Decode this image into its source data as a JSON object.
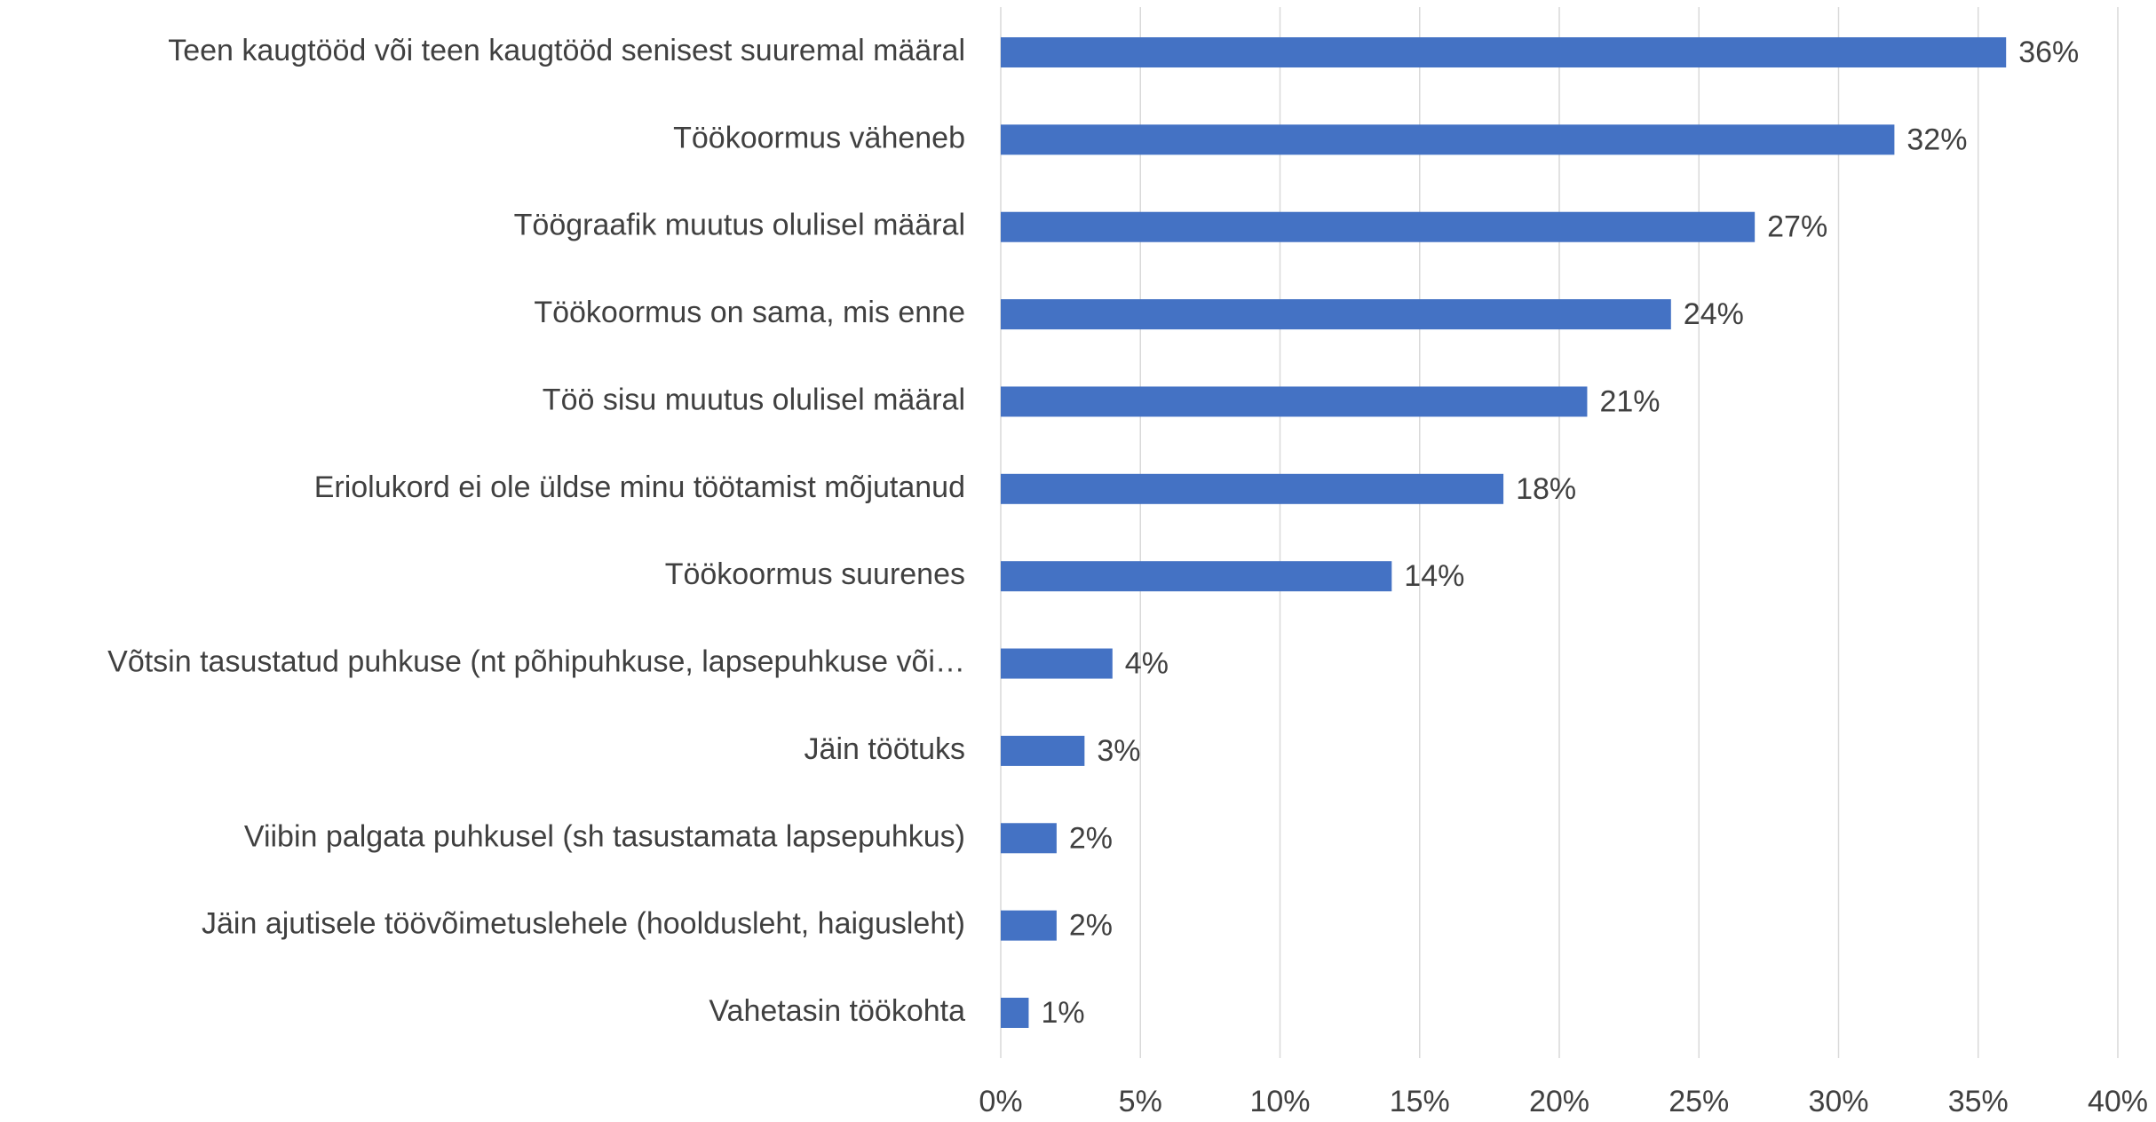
{
  "chart_data": {
    "type": "bar",
    "orientation": "horizontal",
    "categories": [
      "Teen kaugtööd või teen kaugtööd senisest suuremal määral",
      "Töökoormus väheneb",
      "Töögraafik muutus olulisel määral",
      "Töökoormus on sama, mis enne",
      "Töö sisu muutus olulisel määral",
      "Eriolukord ei ole üldse minu töötamist mõjutanud",
      "Töökoormus suurenes",
      "Võtsin tasustatud puhkuse (nt põhipuhkuse, lapsepuhkuse või…",
      "Jäin töötuks",
      "Viibin palgata puhkusel (sh tasustamata lapsepuhkus)",
      "Jäin ajutisele töövõimetuslehele (hooldusleht, haigusleht)",
      "Vahetasin töökohta"
    ],
    "values": [
      36,
      32,
      27,
      24,
      21,
      18,
      14,
      4,
      3,
      2,
      2,
      1
    ],
    "value_labels": [
      "36%",
      "32%",
      "27%",
      "24%",
      "21%",
      "18%",
      "14%",
      "4%",
      "3%",
      "2%",
      "2%",
      "1%"
    ],
    "color": "#4472c4",
    "xlim": [
      0,
      40
    ],
    "xticks": [
      {
        "value": 0,
        "label": "0%"
      },
      {
        "value": 5,
        "label": "5%"
      },
      {
        "value": 10,
        "label": "10%"
      },
      {
        "value": 15,
        "label": "15%"
      },
      {
        "value": 20,
        "label": "20%"
      },
      {
        "value": 25,
        "label": "25%"
      },
      {
        "value": 30,
        "label": "30%"
      },
      {
        "value": 35,
        "label": "35%"
      },
      {
        "value": 40,
        "label": "40%"
      }
    ],
    "grid": true
  }
}
